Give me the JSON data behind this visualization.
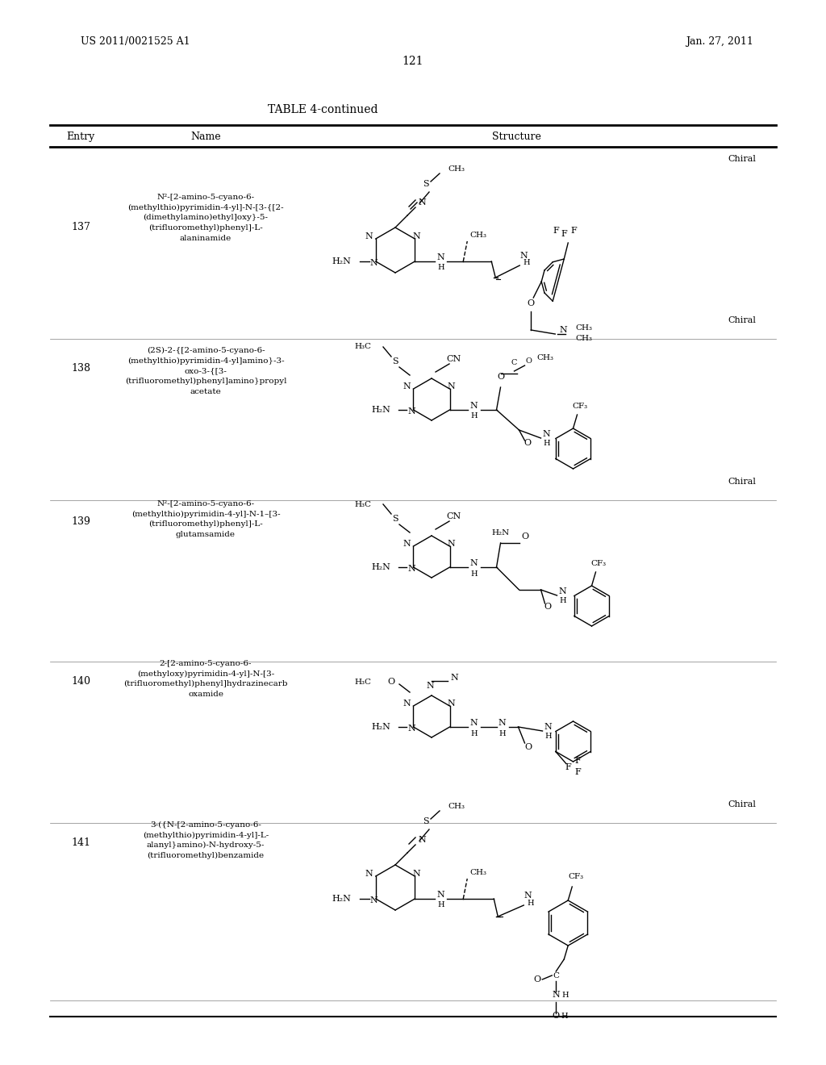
{
  "page_number": "121",
  "patent_number": "US 2011/0021525 A1",
  "patent_date": "Jan. 27, 2011",
  "table_title": "TABLE 4-continued",
  "col_headers": [
    "Entry",
    "Name",
    "Structure"
  ],
  "background_color": "#ffffff",
  "text_color": "#000000",
  "entries": [
    {
      "number": "137",
      "name": "N²-[2-amino-5-cyano-6-\n(methylthio)pyrimidin-4-yl]-N-[3-{[2-\n(dimethylamino)ethyl]oxy}-5-\n(trifluoromethyl)phenyl]-L-\nalaninamide",
      "chiral": "Chiral"
    },
    {
      "number": "138",
      "name": "(2S)-2-{[2-amino-5-cyano-6-\n(methylthio)pyrimidin-4-yl]amino}-3-\noxo-3-{[3-\n(trifluoromethyl)phenyl]amino}propyl\nacetate",
      "chiral": "Chiral"
    },
    {
      "number": "139",
      "name": "N²-[2-amino-5-cyano-6-\n(methylthio)pyrimidin-4-yl]-N-1–[3-\n(trifluoromethyl)phenyl]-L-\nglutamsamide",
      "chiral": "Chiral"
    },
    {
      "number": "140",
      "name": "2-[2-amino-5-cyano-6-\n(methyloxy)pyrimidin-4-yl]-N-[3-\n(trifluoromethyl)phenyl]hydrazinecarb\noxamide",
      "chiral": ""
    },
    {
      "number": "141",
      "name": "3-({N-[2-amino-5-cyano-6-\n(methylthio)pyrimidin-4-yl]-L-\nalanyl}amino)-N-hydroxy-5-\n(trifluoromethyl)benzamide",
      "chiral": "Chiral"
    }
  ]
}
